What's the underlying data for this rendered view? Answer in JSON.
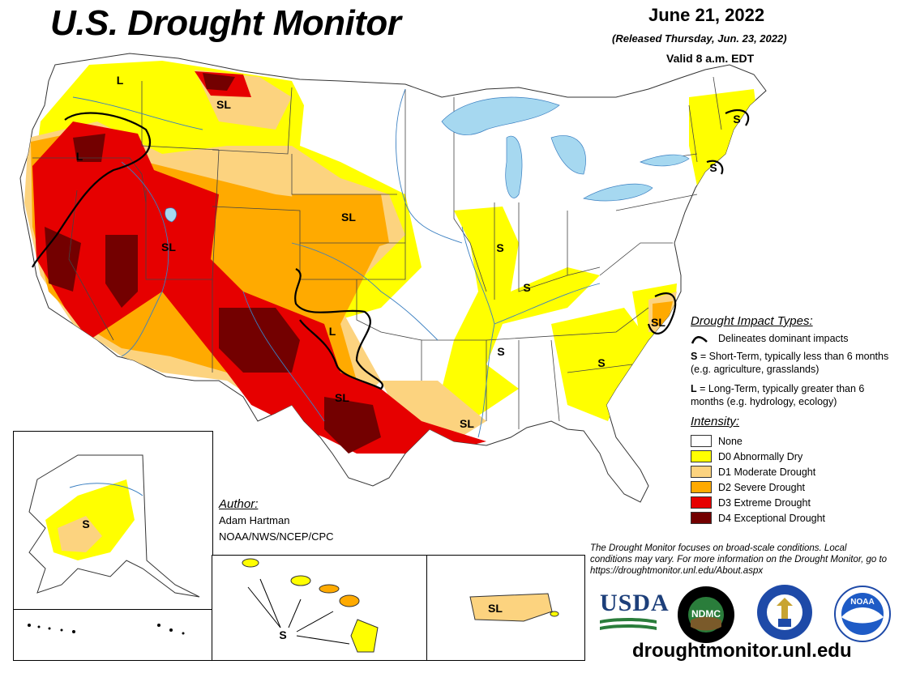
{
  "header": {
    "title": "U.S. Drought Monitor",
    "date": "June 21, 2022",
    "released": "(Released Thursday, Jun. 23, 2022)",
    "valid": "Valid 8 a.m. EDT"
  },
  "map_labels": {
    "montana_north": "L",
    "montana": "SL",
    "oregon": "L",
    "utah": "SL",
    "nebraska": "SL",
    "kansas_oklahoma": "L",
    "texas": "SL",
    "louisiana": "SL",
    "illinois": "S",
    "kentucky": "S",
    "mississippi": "S",
    "georgia": "S",
    "north_carolina": "SL",
    "maine": "S",
    "massachusetts": "S",
    "alaska": "S",
    "hawaii": "S",
    "puerto_rico": "SL"
  },
  "legend": {
    "impact_title": "Drought Impact Types:",
    "dominant_line": "Delineates dominant impacts",
    "short_term_code": "S",
    "short_term_text": "= Short-Term, typically less than 6 months (e.g. agriculture, grasslands)",
    "long_term_code": "L",
    "long_term_text": "= Long-Term, typically greater than 6 months (e.g. hydrology, ecology)",
    "intensity_title": "Intensity:",
    "intensity": [
      {
        "label": "None",
        "color": "#ffffff"
      },
      {
        "label": "D0 Abnormally Dry",
        "color": "#ffff00"
      },
      {
        "label": "D1 Moderate Drought",
        "color": "#fcd37f"
      },
      {
        "label": "D2 Severe Drought",
        "color": "#ffaa00"
      },
      {
        "label": "D3 Extreme Drought",
        "color": "#e60000"
      },
      {
        "label": "D4 Exceptional Drought",
        "color": "#730000"
      }
    ]
  },
  "author": {
    "label": "Author:",
    "name": "Adam Hartman",
    "org": "NOAA/NWS/NCEP/CPC"
  },
  "disclaimer": "The Drought Monitor focuses on broad-scale conditions. Local conditions may vary. For more information on the Drought Monitor, go to https://droughtmonitor.unl.edu/About.aspx",
  "logos": {
    "usda": "USDA",
    "ndmc": "NDMC",
    "ndmc_ring": "NATIONAL DROUGHT MITIGATION CENTER",
    "ndmc_bottom": "UNIVERSITY OF NEBRASKA",
    "commerce_ring": "DEPARTMENT OF COMMERCE",
    "commerce_bottom": "UNITED STATES OF AMERICA",
    "noaa": "NOAA"
  },
  "website": "droughtmonitor.unl.edu"
}
